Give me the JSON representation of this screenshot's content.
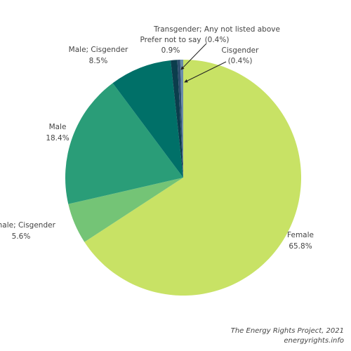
{
  "chart_data": {
    "type": "pie",
    "categories": [
      "Female",
      "Female; Cisgender",
      "Male",
      "Male; Cisgender",
      "Prefer not to say",
      "Transgender; Any not listed above",
      "Cisgender"
    ],
    "values": [
      65.8,
      5.6,
      18.4,
      8.5,
      0.9,
      0.4,
      0.4
    ],
    "value_labels": [
      "65.8%",
      "5.6%",
      "18.4%",
      "8.5%",
      "0.9%",
      "(0.4%)",
      "(0.4%)"
    ],
    "colors": [
      "#c8e265",
      "#74c476",
      "#2a9d78",
      "#007068",
      "#0b3d4c",
      "#2e4f6e",
      "#6a8cab"
    ],
    "caption": [
      "The Energy Rights Project, 2021",
      "energyrights.info"
    ]
  }
}
